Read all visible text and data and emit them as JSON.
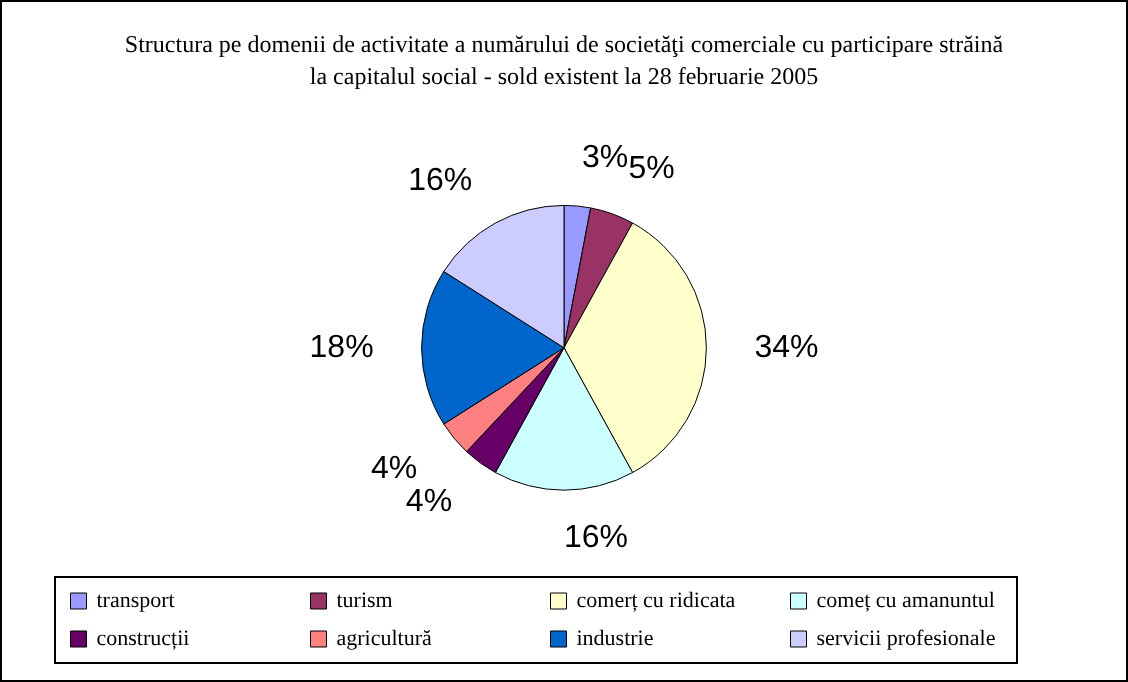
{
  "chart_data": {
    "type": "pie",
    "title": "Structura pe domenii de activitate a numărului de societăţi comerciale cu participare străină\nla capitalul social - sold existent la 28 februarie 2005",
    "categories": [
      "transport",
      "turism",
      "comerț cu ridicata",
      "comeț cu amanuntul",
      "construcții",
      "agricultură",
      "industrie",
      "servicii profesionale"
    ],
    "values": [
      3,
      5,
      34,
      16,
      4,
      4,
      18,
      16
    ],
    "value_labels": [
      "3%",
      "5%",
      "34%",
      "16%",
      "4%",
      "4%",
      "18%",
      "16%"
    ],
    "colors": [
      "#9999ff",
      "#993366",
      "#ffffcc",
      "#ccffff",
      "#660066",
      "#ff8080",
      "#0066cc",
      "#ccccff"
    ],
    "legend": "bottom"
  }
}
